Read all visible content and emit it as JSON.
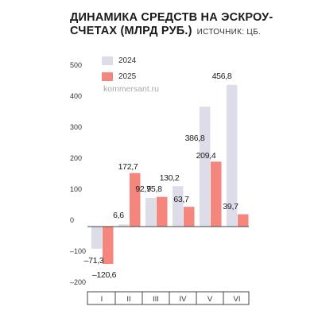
{
  "header": {
    "title_line1": "ДИНАМИКА СРЕДСТВ НА ЭСКРОУ-",
    "title_line2": "СЧЕТАХ (МЛРД РУБ.)",
    "source": "ИСТОЧНИК: ЦБ."
  },
  "watermark": "kommersant.ru",
  "colors": {
    "series_2024": "#dcdde8",
    "series_2025": "#f4867d",
    "text": "#1a1a1a",
    "grid": "#9a9a9a"
  },
  "chart_data": {
    "type": "bar",
    "title": "ДИНАМИКА СРЕДСТВ НА ЭСКРОУ-СЧЕТАХ (МЛРД РУБ.)",
    "categories": [
      "I",
      "II",
      "III",
      "IV",
      "V",
      "VI"
    ],
    "series": [
      {
        "name": "2024",
        "values": [
          -71.3,
          6.6,
          92.7,
          130.2,
          386.8,
          456.8
        ],
        "labels": [
          "–71,3",
          "6,6",
          "92,7",
          "130,2",
          "386,8",
          "456,8"
        ]
      },
      {
        "name": "2025",
        "values": [
          -120.6,
          172.7,
          95.8,
          63.7,
          209.4,
          39.7
        ],
        "labels": [
          "–120,6",
          "172,7",
          "95,8",
          "63,7",
          "209,4",
          "39,7"
        ]
      }
    ],
    "yticks": [
      500,
      400,
      300,
      200,
      100,
      0,
      -100,
      -200
    ],
    "ytick_labels": [
      "500",
      "400",
      "300",
      "200",
      "100",
      "0",
      "–100",
      "–200"
    ],
    "ylim": [
      -200,
      500
    ],
    "legend_position": "top-left",
    "grid": false
  }
}
